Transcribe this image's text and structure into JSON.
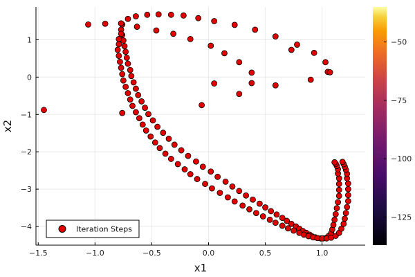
{
  "chart_data": {
    "type": "scatter",
    "xlabel": "x1",
    "ylabel": "x2",
    "xlim": [
      -1.52,
      1.38
    ],
    "ylim": [
      -4.5,
      1.88
    ],
    "xticks": [
      -1.5,
      -1.0,
      -0.5,
      0.0,
      0.5,
      1.0
    ],
    "xtick_labels": [
      "−1.5",
      "−1.0",
      "−0.5",
      "0.0",
      "0.5",
      "1.0"
    ],
    "yticks": [
      1,
      0,
      -1,
      -2,
      -3,
      -4
    ],
    "ytick_labels": [
      "1",
      "0",
      "−1",
      "−2",
      "−3",
      "−4"
    ],
    "grid": true,
    "legend_position": "bottom-left",
    "colorbar": {
      "range": [
        -137,
        -35
      ],
      "ticks": [
        -50,
        -75,
        -100,
        -125
      ],
      "tick_labels": [
        "−50",
        "−75",
        "−100",
        "−125"
      ],
      "colormap": "inferno-like"
    },
    "series": [
      {
        "name": "Iteration Steps",
        "color": "#e00000",
        "edge_color": "#000000",
        "x": [
          -1.45,
          -0.06,
          0.27,
          0.05,
          0.38,
          0.38,
          0.27,
          0.14,
          0.02,
          -0.16,
          -0.31,
          -0.46,
          -0.63,
          -0.76,
          -0.91,
          -1.06,
          0.93,
          0.73,
          0.59,
          0.41,
          0.23,
          0.05,
          -0.09,
          -0.22,
          -0.33,
          -0.44,
          -0.54,
          -0.64,
          -0.71,
          -0.77,
          -0.77,
          -0.76,
          -0.75,
          -0.74,
          -0.73,
          -0.72,
          -0.71,
          -0.69,
          -0.68,
          -0.66,
          -0.64,
          -0.62,
          -0.59,
          -0.56,
          -0.53,
          -0.49,
          -0.45,
          -0.4,
          -0.35,
          -0.3,
          -0.24,
          -0.18,
          -0.11,
          -0.05,
          0.02,
          0.08,
          0.15,
          0.21,
          0.27,
          0.33,
          0.39,
          0.45,
          0.5,
          0.55,
          0.6,
          0.65,
          0.69,
          0.73,
          0.77,
          0.8,
          0.83,
          0.86,
          0.89,
          0.91,
          0.94,
          0.96,
          0.99,
          1.01,
          1.04,
          1.06,
          1.08,
          1.09,
          1.1,
          1.11,
          1.12,
          1.13,
          1.14,
          1.15,
          1.15,
          1.15,
          1.15,
          1.14,
          1.14,
          1.13,
          1.12,
          1.11,
          -0.76,
          -0.77,
          -0.79,
          -0.79,
          -0.8,
          -0.79,
          -0.78,
          -0.77,
          -0.76,
          -0.75,
          -0.73,
          -0.71,
          -0.69,
          -0.67,
          -0.64,
          -0.61,
          -0.58,
          -0.55,
          -0.51,
          -0.47,
          -0.43,
          -0.38,
          -0.33,
          -0.27,
          -0.21,
          -0.16,
          -0.1,
          -0.03,
          0.03,
          0.1,
          0.17,
          0.23,
          0.3,
          0.36,
          0.42,
          0.48,
          0.54,
          0.59,
          0.65,
          0.7,
          0.75,
          0.8,
          0.84,
          0.88,
          0.92,
          0.96,
          1.0,
          1.04,
          1.08,
          1.12,
          1.15,
          1.17,
          1.19,
          1.2,
          1.21,
          1.22,
          1.23,
          1.23,
          1.23,
          1.23,
          1.22,
          1.22,
          1.21,
          1.2,
          1.19,
          1.18,
          0.59,
          0.78,
          0.9,
          1.03,
          1.05,
          1.07
        ],
        "y": [
          -0.88,
          -0.75,
          -0.45,
          -0.17,
          -0.16,
          0.12,
          0.4,
          0.64,
          0.84,
          1.02,
          1.16,
          1.25,
          1.35,
          1.41,
          1.43,
          1.41,
          0.65,
          0.73,
          1.09,
          1.27,
          1.4,
          1.5,
          1.58,
          1.65,
          1.67,
          1.68,
          1.67,
          1.63,
          1.56,
          1.44,
          1.27,
          1.13,
          0.98,
          0.83,
          0.68,
          0.52,
          0.36,
          0.19,
          0.03,
          -0.14,
          -0.31,
          -0.48,
          -0.65,
          -0.82,
          -0.99,
          -1.16,
          -1.33,
          -1.49,
          -1.65,
          -1.81,
          -1.96,
          -2.11,
          -2.26,
          -2.4,
          -2.53,
          -2.67,
          -2.8,
          -2.93,
          -3.05,
          -3.17,
          -3.28,
          -3.39,
          -3.49,
          -3.59,
          -3.68,
          -3.77,
          -3.85,
          -3.93,
          -4.0,
          -4.06,
          -4.12,
          -4.17,
          -4.22,
          -4.26,
          -4.29,
          -4.31,
          -4.32,
          -4.32,
          -4.3,
          -4.25,
          -4.18,
          -4.08,
          -3.96,
          -3.82,
          -3.67,
          -3.51,
          -3.35,
          -3.18,
          -3.02,
          -2.86,
          -2.71,
          -2.58,
          -2.47,
          -2.38,
          -2.32,
          -2.28,
          -0.96,
          1.16,
          1.02,
          0.88,
          0.73,
          0.57,
          0.41,
          0.25,
          0.08,
          -0.09,
          -0.26,
          -0.43,
          -0.6,
          -0.77,
          -0.94,
          -1.1,
          -1.27,
          -1.43,
          -1.59,
          -1.75,
          -1.9,
          -2.05,
          -2.19,
          -2.33,
          -2.47,
          -2.6,
          -2.73,
          -2.86,
          -2.98,
          -3.1,
          -3.22,
          -3.33,
          -3.44,
          -3.54,
          -3.64,
          -3.73,
          -3.82,
          -3.9,
          -3.98,
          -4.05,
          -4.11,
          -4.17,
          -4.22,
          -4.26,
          -4.29,
          -4.31,
          -4.32,
          -4.32,
          -4.3,
          -4.25,
          -4.17,
          -4.06,
          -3.93,
          -3.79,
          -3.64,
          -3.48,
          -3.32,
          -3.16,
          -3.0,
          -2.85,
          -2.71,
          -2.59,
          -2.48,
          -2.4,
          -2.33,
          -2.27,
          -0.22,
          0.87,
          -0.07,
          0.4,
          0.14,
          0.13
        ]
      }
    ]
  }
}
